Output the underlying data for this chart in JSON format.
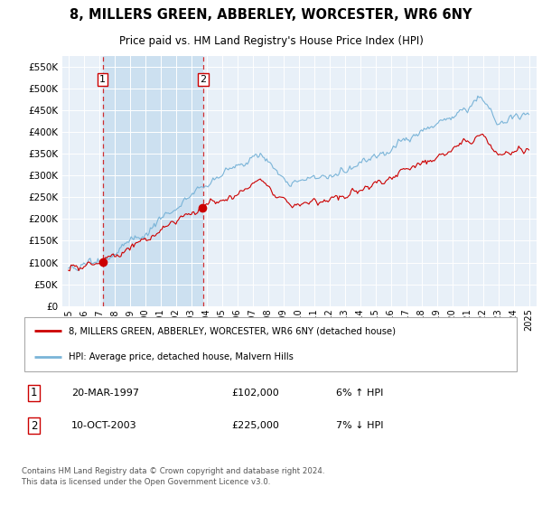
{
  "title": "8, MILLERS GREEN, ABBERLEY, WORCESTER, WR6 6NY",
  "subtitle": "Price paid vs. HM Land Registry's House Price Index (HPI)",
  "hpi_color": "#7ab4d8",
  "price_color": "#cc0000",
  "dot_color": "#cc0000",
  "shade_color": "#cce0f0",
  "plot_bg": "#e8f0f8",
  "grid_color": "#c8d8e8",
  "legend_label_price": "8, MILLERS GREEN, ABBERLEY, WORCESTER, WR6 6NY (detached house)",
  "legend_label_hpi": "HPI: Average price, detached house, Malvern Hills",
  "sale1_date": "20-MAR-1997",
  "sale1_price": "£102,000",
  "sale1_hpi": "6% ↑ HPI",
  "sale1_year": 1997.22,
  "sale1_value": 102000,
  "sale2_date": "10-OCT-2003",
  "sale2_price": "£225,000",
  "sale2_hpi": "7% ↓ HPI",
  "sale2_year": 2003.78,
  "sale2_value": 225000,
  "footer": "Contains HM Land Registry data © Crown copyright and database right 2024.\nThis data is licensed under the Open Government Licence v3.0.",
  "ylim": [
    0,
    575000
  ],
  "yticks": [
    0,
    50000,
    100000,
    150000,
    200000,
    250000,
    300000,
    350000,
    400000,
    450000,
    500000,
    550000
  ],
  "xlim_start": 1994.6,
  "xlim_end": 2025.5
}
